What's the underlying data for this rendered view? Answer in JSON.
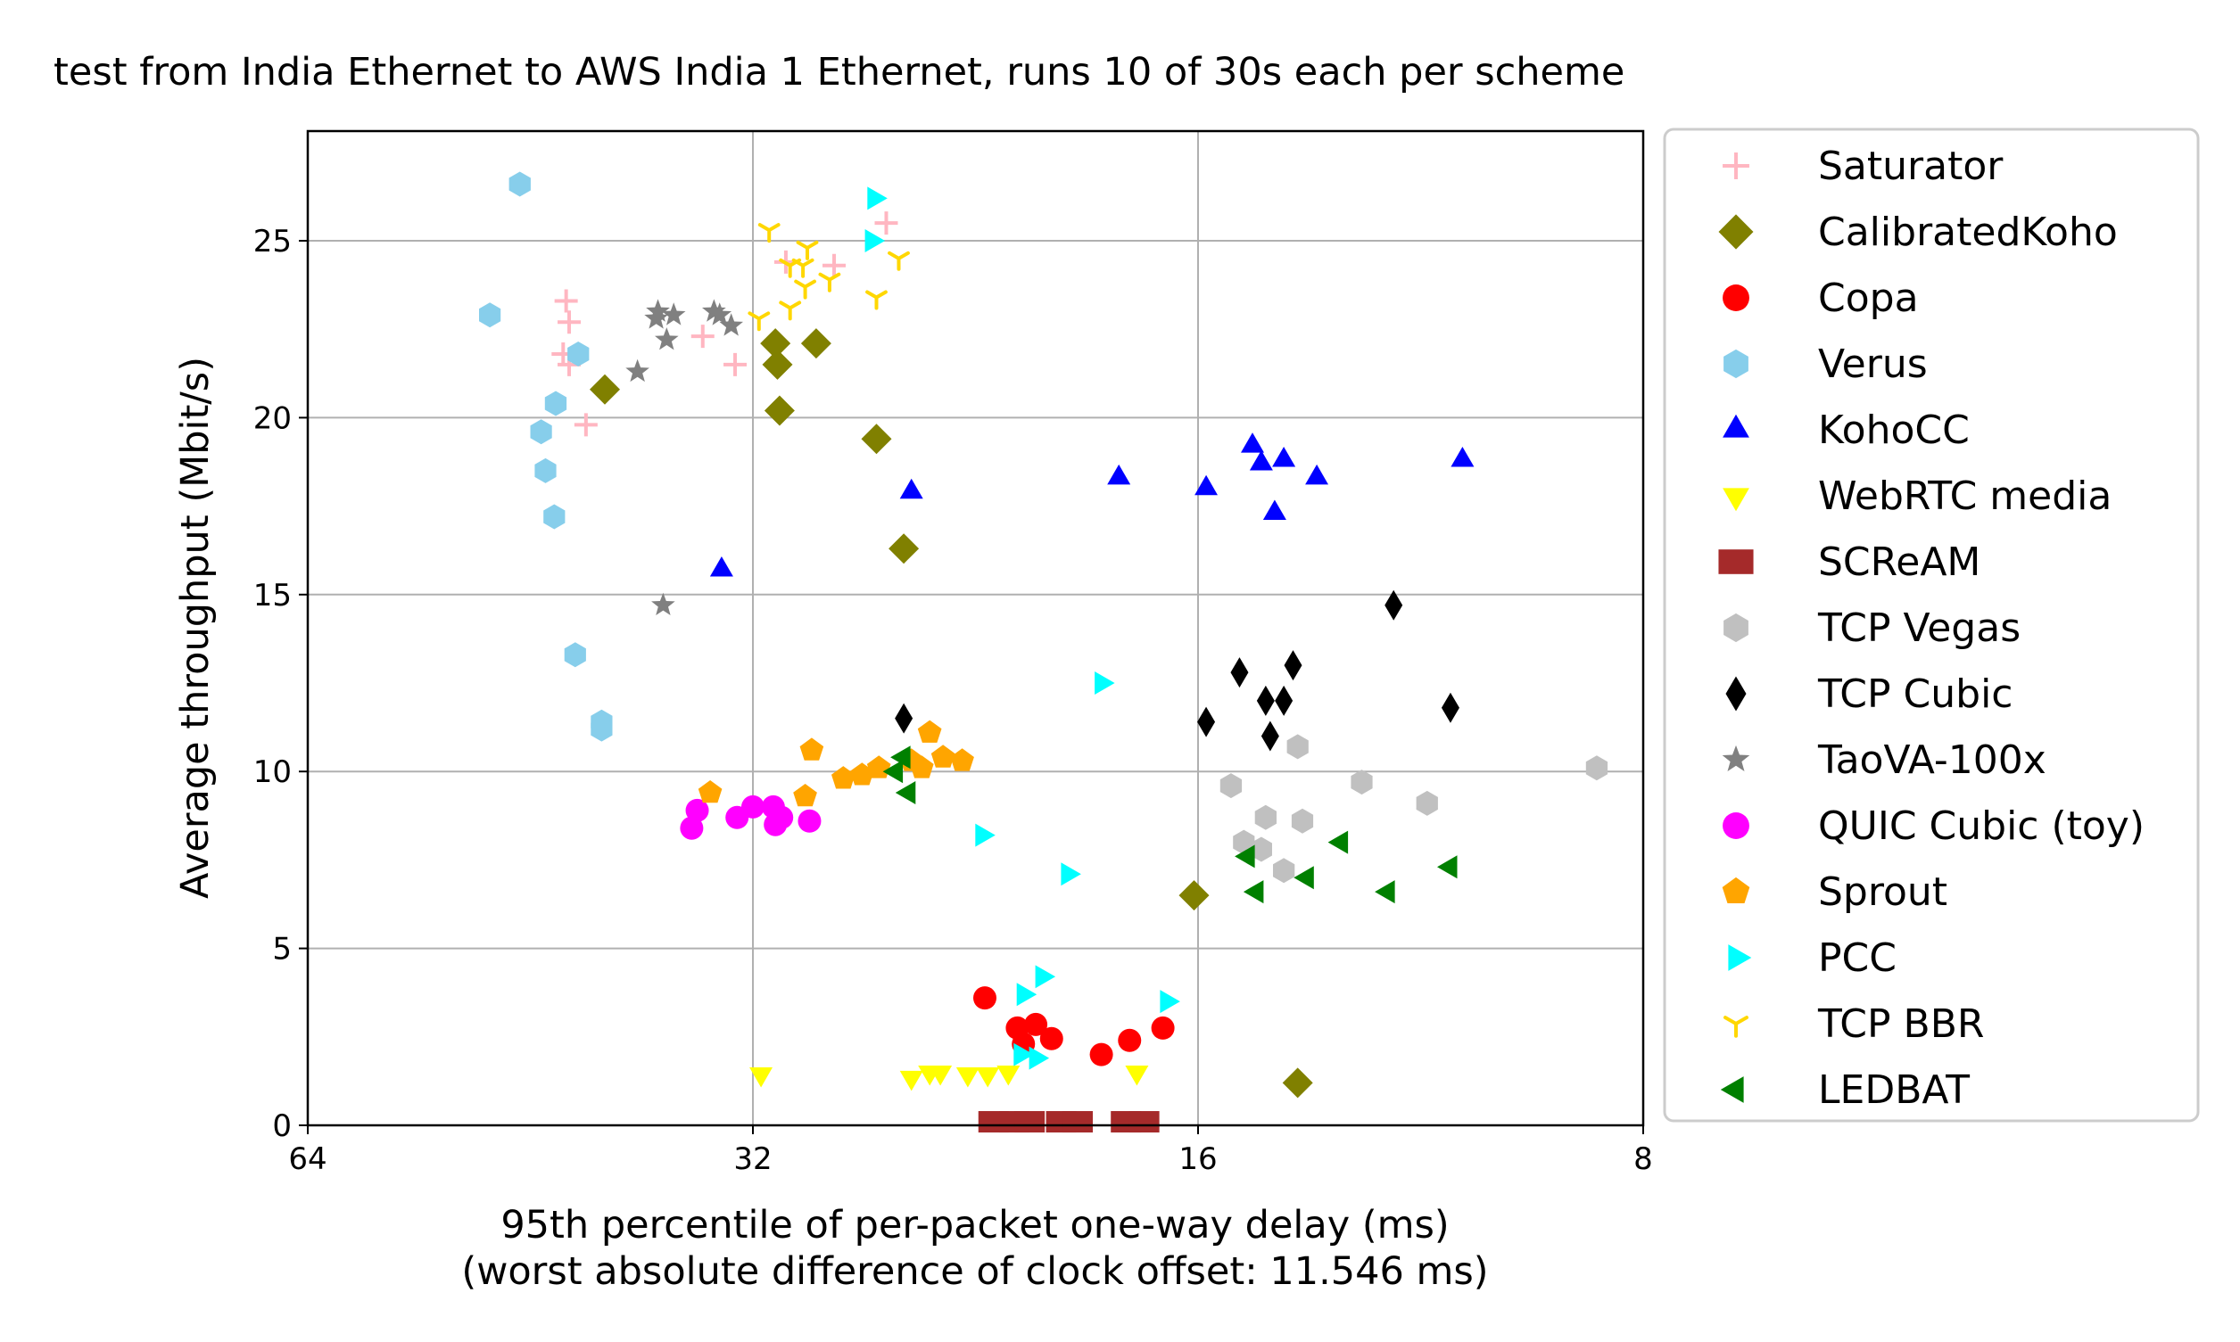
{
  "chart_data": {
    "type": "scatter",
    "title": "test from India Ethernet to AWS India 1 Ethernet, runs 10 of 30s each per scheme",
    "xlabel": "95th percentile of per-packet one-way delay (ms)",
    "xlabel_line2": "(worst absolute difference of clock offset: 11.546 ms)",
    "ylabel": "Average throughput (Mbit/s)",
    "x_scale": "log2",
    "x_inverted": true,
    "xlim": [
      64,
      8
    ],
    "ylim": [
      0,
      28.1
    ],
    "x_ticks": [
      64,
      32,
      16,
      8
    ],
    "y_ticks": [
      0,
      5,
      10,
      15,
      20,
      25
    ],
    "grid": true,
    "legend_position": "outside-right",
    "series": [
      {
        "name": "Saturator",
        "color": "#ffb6c1",
        "marker": "plus",
        "points": [
          [
            42.8,
            23.3
          ],
          [
            42.6,
            22.7
          ],
          [
            43.0,
            21.8
          ],
          [
            42.6,
            21.5
          ],
          [
            41.5,
            19.8
          ],
          [
            34.6,
            22.3
          ],
          [
            30.4,
            24.4
          ],
          [
            28.2,
            24.3
          ],
          [
            26.0,
            25.5
          ],
          [
            32.9,
            21.5
          ]
        ]
      },
      {
        "name": "CalibratedKoho",
        "color": "#808000",
        "marker": "diamond",
        "points": [
          [
            40.3,
            20.8
          ],
          [
            30.9,
            22.1
          ],
          [
            29.0,
            22.1
          ],
          [
            30.8,
            21.5
          ],
          [
            30.7,
            20.2
          ],
          [
            26.4,
            19.4
          ],
          [
            25.3,
            16.3
          ],
          [
            16.1,
            6.5
          ],
          [
            13.7,
            1.2
          ]
        ]
      },
      {
        "name": "Copa",
        "color": "#ff0000",
        "marker": "circle",
        "points": [
          [
            22.3,
            3.6
          ],
          [
            21.2,
            2.75
          ],
          [
            20.6,
            2.85
          ],
          [
            20.1,
            2.45
          ],
          [
            21.0,
            2.3
          ],
          [
            18.6,
            2.0
          ],
          [
            17.8,
            2.4
          ],
          [
            16.9,
            2.75
          ]
        ]
      },
      {
        "name": "Verus",
        "color": "#87ceeb",
        "marker": "hexagon",
        "points": [
          [
            46.0,
            26.6
          ],
          [
            48.2,
            22.9
          ],
          [
            42.0,
            21.8
          ],
          [
            43.5,
            20.4
          ],
          [
            44.5,
            19.6
          ],
          [
            44.2,
            18.5
          ],
          [
            43.6,
            17.2
          ],
          [
            42.2,
            13.3
          ],
          [
            40.5,
            11.4
          ],
          [
            40.5,
            11.2
          ]
        ]
      },
      {
        "name": "KohoCC",
        "color": "#0000ff",
        "marker": "triangle-up",
        "points": [
          [
            33.6,
            15.7
          ],
          [
            25.0,
            17.9
          ],
          [
            18.1,
            18.3
          ],
          [
            15.8,
            18.0
          ],
          [
            14.7,
            19.2
          ],
          [
            14.5,
            18.7
          ],
          [
            14.0,
            18.8
          ],
          [
            14.2,
            17.3
          ],
          [
            13.3,
            18.3
          ],
          [
            10.6,
            18.8
          ]
        ]
      },
      {
        "name": "WebRTC media",
        "color": "#ffff00",
        "marker": "triangle-down",
        "points": [
          [
            31.6,
            1.45
          ],
          [
            25.0,
            1.35
          ],
          [
            24.3,
            1.5
          ],
          [
            23.9,
            1.5
          ],
          [
            22.9,
            1.45
          ],
          [
            22.2,
            1.45
          ],
          [
            21.5,
            1.5
          ],
          [
            17.6,
            1.5
          ]
        ]
      },
      {
        "name": "SCReAM",
        "color": "#a52a2a",
        "marker": "square",
        "points": [
          [
            22.0,
            0.1
          ],
          [
            21.3,
            0.1
          ],
          [
            20.8,
            0.1
          ],
          [
            19.8,
            0.1
          ],
          [
            19.3,
            0.1
          ],
          [
            17.9,
            0.1
          ],
          [
            17.4,
            0.1
          ]
        ]
      },
      {
        "name": "TCP Vegas",
        "color": "#c0c0c0",
        "marker": "hexagon",
        "points": [
          [
            13.7,
            10.7
          ],
          [
            15.2,
            9.6
          ],
          [
            12.4,
            9.7
          ],
          [
            11.2,
            9.1
          ],
          [
            8.6,
            10.1
          ],
          [
            14.4,
            8.7
          ],
          [
            13.6,
            8.6
          ],
          [
            14.9,
            8.0
          ],
          [
            14.5,
            7.8
          ],
          [
            14.0,
            7.2
          ]
        ]
      },
      {
        "name": "TCP Cubic",
        "color": "#000000",
        "marker": "thin-diamond",
        "points": [
          [
            25.3,
            11.5
          ],
          [
            15.8,
            11.4
          ],
          [
            15.0,
            12.8
          ],
          [
            14.4,
            12.0
          ],
          [
            14.3,
            11.0
          ],
          [
            14.0,
            12.0
          ],
          [
            13.8,
            13.0
          ],
          [
            11.8,
            14.7
          ],
          [
            10.8,
            11.8
          ]
        ]
      },
      {
        "name": "TaoVA-100x",
        "color": "#808080",
        "marker": "star",
        "points": [
          [
            37.1,
            23.0
          ],
          [
            37.2,
            22.8
          ],
          [
            36.2,
            22.9
          ],
          [
            34.0,
            23.0
          ],
          [
            33.7,
            22.9
          ],
          [
            33.1,
            22.6
          ],
          [
            36.6,
            22.2
          ],
          [
            38.3,
            21.3
          ],
          [
            36.8,
            14.7
          ]
        ]
      },
      {
        "name": "QUIC Cubic (toy)",
        "color": "#ff00ff",
        "marker": "circle",
        "points": [
          [
            34.9,
            8.9
          ],
          [
            35.2,
            8.4
          ],
          [
            32.8,
            8.7
          ],
          [
            32.0,
            9.0
          ],
          [
            31.0,
            9.0
          ],
          [
            30.6,
            8.7
          ],
          [
            30.9,
            8.5
          ],
          [
            29.3,
            8.6
          ]
        ]
      },
      {
        "name": "Sprout",
        "color": "#ffa500",
        "marker": "pentagon",
        "points": [
          [
            34.2,
            9.4
          ],
          [
            29.5,
            9.3
          ],
          [
            29.2,
            10.6
          ],
          [
            27.8,
            9.8
          ],
          [
            27.0,
            9.9
          ],
          [
            26.3,
            10.1
          ],
          [
            25.0,
            10.3
          ],
          [
            24.6,
            10.1
          ],
          [
            24.3,
            11.1
          ],
          [
            23.8,
            10.4
          ],
          [
            23.1,
            10.3
          ]
        ]
      },
      {
        "name": "PCC",
        "color": "#00ffff",
        "marker": "triangle-right",
        "points": [
          [
            26.5,
            26.2
          ],
          [
            26.6,
            25.0
          ],
          [
            18.6,
            12.5
          ],
          [
            22.4,
            8.2
          ],
          [
            19.6,
            7.1
          ],
          [
            20.4,
            4.2
          ],
          [
            21.0,
            3.7
          ],
          [
            16.8,
            3.5
          ],
          [
            21.1,
            2.0
          ],
          [
            20.6,
            1.9
          ]
        ]
      },
      {
        "name": "TCP BBR",
        "color": "#ffd700",
        "marker": "tri-down",
        "points": [
          [
            31.2,
            25.3
          ],
          [
            30.2,
            24.3
          ],
          [
            29.4,
            24.8
          ],
          [
            29.6,
            24.3
          ],
          [
            28.4,
            23.9
          ],
          [
            29.5,
            23.7
          ],
          [
            26.4,
            23.4
          ],
          [
            25.5,
            24.5
          ],
          [
            31.7,
            22.8
          ],
          [
            30.2,
            23.1
          ]
        ]
      },
      {
        "name": "LEDBAT",
        "color": "#008000",
        "marker": "triangle-left",
        "points": [
          [
            25.3,
            10.4
          ],
          [
            25.6,
            10.0
          ],
          [
            25.1,
            9.4
          ],
          [
            14.8,
            7.6
          ],
          [
            12.8,
            8.0
          ],
          [
            10.8,
            7.3
          ],
          [
            14.6,
            6.6
          ],
          [
            13.5,
            7.0
          ],
          [
            11.9,
            6.6
          ]
        ]
      }
    ]
  }
}
